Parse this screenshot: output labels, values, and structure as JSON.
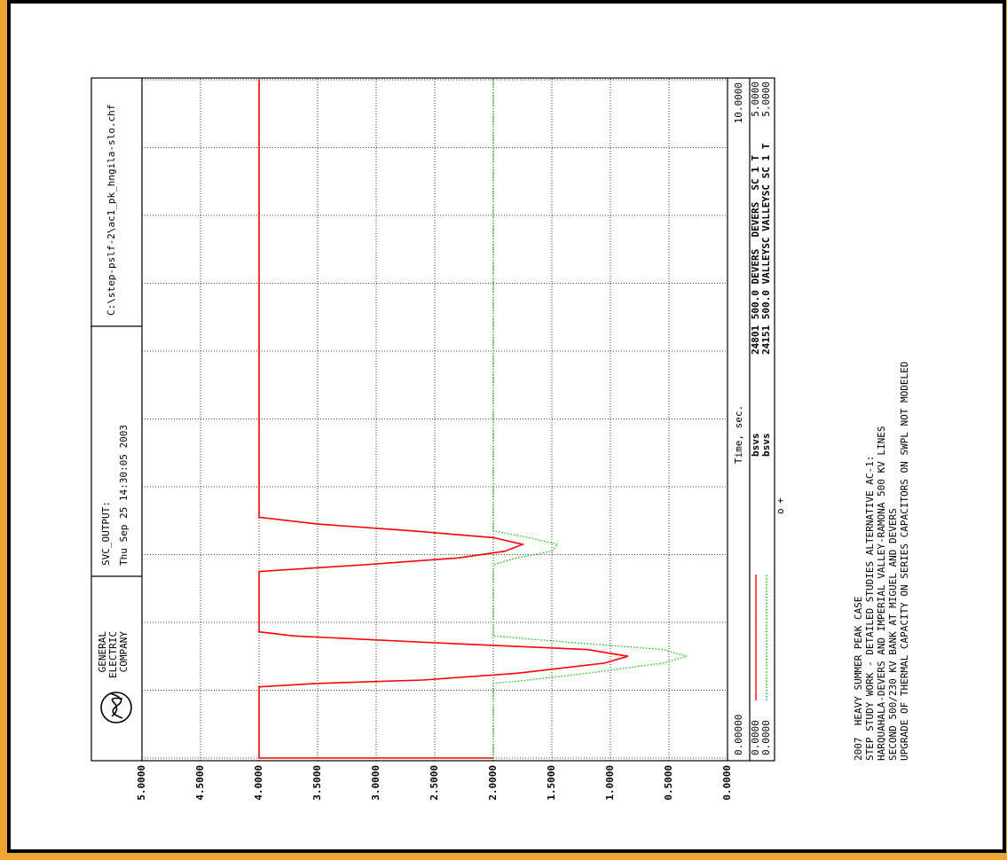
{
  "chart_data": {
    "type": "line",
    "header": {
      "company": [
        "GENERAL",
        "ELECTRIC",
        "COMPANY"
      ],
      "title": "SVC_OUTPUT:",
      "date": "Thu Sep 25 14:30:05 2003",
      "file": "C:\\step-pslf-2\\ac1_pk_hngila-slo.chf"
    },
    "x_label": "Time, sec.",
    "x": [
      0,
      0,
      1.05,
      1.1,
      1.15,
      1.25,
      1.4,
      1.5,
      1.6,
      1.7,
      1.8,
      1.86,
      2.75,
      2.85,
      2.95,
      3.05,
      3.15,
      3.25,
      3.35,
      3.45,
      3.55,
      10
    ],
    "xlim": [
      0,
      10
    ],
    "xticks": [
      {
        "value": 0,
        "label": "0.00000"
      },
      {
        "value": 10,
        "label": "10.0000"
      }
    ],
    "xgrid": [
      1,
      2,
      3,
      4,
      5,
      6,
      7,
      8,
      9
    ],
    "ylim": [
      0,
      5
    ],
    "yticks": [
      {
        "value": 0,
        "label": "0.0000"
      },
      {
        "value": 0.5,
        "label": "0.5000"
      },
      {
        "value": 1,
        "label": "1.0000"
      },
      {
        "value": 1.5,
        "label": "1.5000"
      },
      {
        "value": 2,
        "label": "2.0000"
      },
      {
        "value": 2.5,
        "label": "2.5000"
      },
      {
        "value": 3,
        "label": "3.0000"
      },
      {
        "value": 3.5,
        "label": "3.5000"
      },
      {
        "value": 4,
        "label": "4.0000"
      },
      {
        "value": 4.5,
        "label": "4.5000"
      },
      {
        "value": 5,
        "label": "5.0000"
      }
    ],
    "grid": true,
    "series": [
      {
        "name": "bsvs",
        "channel": "24801 500.0 DEVERS  DEVERS  SC 1 T",
        "color": "#ff0000",
        "dotted": false,
        "marker": "o",
        "scale": [
          {
            "value": 0,
            "label": "0.0000"
          },
          {
            "value": 5,
            "label": "5.0000"
          }
        ],
        "values": [
          2,
          4,
          4,
          3.5,
          2.6,
          1.8,
          1.05,
          0.85,
          1.2,
          2.5,
          3.7,
          4,
          4,
          3.1,
          2.3,
          1.9,
          1.75,
          2.0,
          2.7,
          3.5,
          4,
          4
        ]
      },
      {
        "name": "bsvs",
        "channel": "24151 500.0 VALLEYSC VALLEYSC SC 1 T",
        "color": "#00c000",
        "dotted": true,
        "marker": "+",
        "scale": [
          {
            "value": 0,
            "label": "0.0000"
          },
          {
            "value": 5,
            "label": "5.0000"
          }
        ],
        "values": [
          2,
          2,
          2,
          2,
          1.7,
          1.2,
          0.55,
          0.35,
          0.55,
          1.3,
          2.0,
          2.0,
          2,
          2,
          1.8,
          1.5,
          1.45,
          1.7,
          2.0,
          2,
          2,
          2
        ]
      }
    ],
    "notes": [
      "2007  HEAVY SUMMER PEAK CASE",
      "STEP STUDY WORK - DETAILED STUDIES ALTERNATIVE AC-1:",
      "HARQUAHALA-DEVERS AND IMPERIAL VALLEY-RAMONA 500 KV LINES",
      "SECOND 500/230 KV BANK AT MIGUEL AND DEVERS",
      "UPGRADE OF THERMAL CAPACITY ON SERIES CAPACITORS ON SWPL NOT MODELED"
    ]
  }
}
